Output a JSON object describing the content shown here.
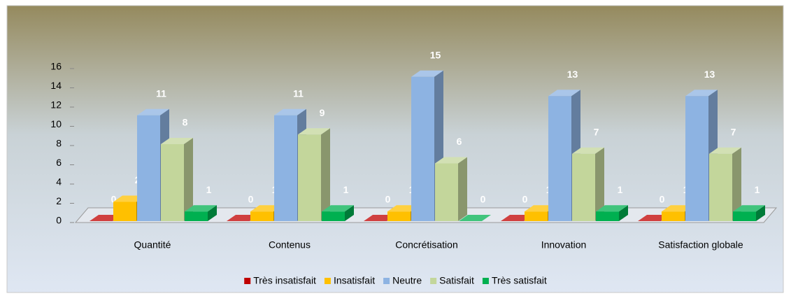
{
  "chart_data": {
    "type": "bar3d",
    "categories": [
      "Quantité",
      "Contenus",
      "Concrétisation",
      "Innovation",
      "Satisfaction globale"
    ],
    "series": [
      {
        "name": "Très insatisfait",
        "color": "#c00000",
        "values": [
          0,
          0,
          0,
          0,
          0
        ]
      },
      {
        "name": "Insatisfait",
        "color": "#ffc000",
        "values": [
          2,
          1,
          1,
          1,
          1
        ]
      },
      {
        "name": "Neutre",
        "color": "#8db3e2",
        "values": [
          11,
          11,
          15,
          13,
          13
        ]
      },
      {
        "name": "Satisfait",
        "color": "#c3d69b",
        "values": [
          8,
          9,
          6,
          7,
          7
        ]
      },
      {
        "name": "Très satisfait",
        "color": "#00b050",
        "values": [
          1,
          1,
          0,
          1,
          1
        ]
      }
    ],
    "ylim": [
      0,
      16
    ],
    "yticks": [
      0,
      2,
      4,
      6,
      8,
      10,
      12,
      14,
      16
    ],
    "legend": "bottom"
  }
}
